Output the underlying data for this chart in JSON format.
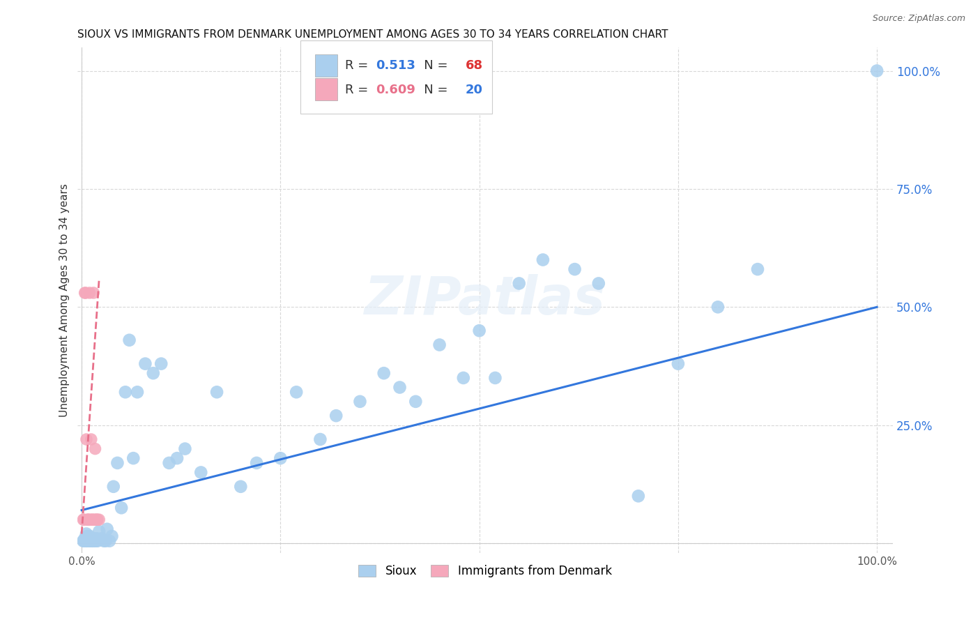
{
  "title": "SIOUX VS IMMIGRANTS FROM DENMARK UNEMPLOYMENT AMONG AGES 30 TO 34 YEARS CORRELATION CHART",
  "source": "Source: ZipAtlas.com",
  "ylabel": "Unemployment Among Ages 30 to 34 years",
  "xlim": [
    -0.005,
    1.02
  ],
  "ylim": [
    -0.02,
    1.05
  ],
  "watermark": "ZIPatlas",
  "legend_sioux_R": "0.513",
  "legend_sioux_N": "68",
  "legend_denmark_R": "0.609",
  "legend_denmark_N": "20",
  "sioux_color": "#aacfee",
  "denmark_color": "#f5a8bb",
  "sioux_line_color": "#3377dd",
  "denmark_line_color": "#e8708a",
  "background_color": "#ffffff",
  "grid_color": "#d8d8d8",
  "sioux_scatter_x": [
    0.002,
    0.003,
    0.004,
    0.004,
    0.005,
    0.005,
    0.006,
    0.006,
    0.007,
    0.007,
    0.008,
    0.009,
    0.01,
    0.01,
    0.011,
    0.012,
    0.013,
    0.014,
    0.015,
    0.016,
    0.018,
    0.019,
    0.02,
    0.022,
    0.025,
    0.028,
    0.03,
    0.032,
    0.035,
    0.038,
    0.04,
    0.045,
    0.05,
    0.055,
    0.06,
    0.065,
    0.07,
    0.08,
    0.09,
    0.1,
    0.11,
    0.12,
    0.13,
    0.15,
    0.17,
    0.2,
    0.22,
    0.25,
    0.27,
    0.3,
    0.32,
    0.35,
    0.38,
    0.4,
    0.42,
    0.45,
    0.48,
    0.5,
    0.52,
    0.55,
    0.58,
    0.62,
    0.65,
    0.7,
    0.75,
    0.8,
    0.85,
    1.0
  ],
  "sioux_scatter_y": [
    0.005,
    0.005,
    0.005,
    0.01,
    0.005,
    0.01,
    0.005,
    0.02,
    0.005,
    0.015,
    0.01,
    0.005,
    0.005,
    0.015,
    0.005,
    0.01,
    0.005,
    0.005,
    0.01,
    0.005,
    0.005,
    0.01,
    0.005,
    0.025,
    0.01,
    0.005,
    0.005,
    0.03,
    0.005,
    0.015,
    0.12,
    0.17,
    0.075,
    0.32,
    0.43,
    0.18,
    0.32,
    0.38,
    0.36,
    0.38,
    0.17,
    0.18,
    0.2,
    0.15,
    0.32,
    0.12,
    0.17,
    0.18,
    0.32,
    0.22,
    0.27,
    0.3,
    0.36,
    0.33,
    0.3,
    0.42,
    0.35,
    0.45,
    0.35,
    0.55,
    0.6,
    0.58,
    0.55,
    0.1,
    0.38,
    0.5,
    0.58,
    1.0
  ],
  "denmark_scatter_x": [
    0.002,
    0.003,
    0.004,
    0.005,
    0.006,
    0.007,
    0.008,
    0.009,
    0.01,
    0.011,
    0.012,
    0.013,
    0.014,
    0.015,
    0.016,
    0.017,
    0.018,
    0.019,
    0.02,
    0.022
  ],
  "denmark_scatter_y": [
    0.05,
    0.05,
    0.53,
    0.53,
    0.22,
    0.05,
    0.05,
    0.05,
    0.53,
    0.05,
    0.22,
    0.05,
    0.05,
    0.53,
    0.05,
    0.2,
    0.05,
    0.05,
    0.05,
    0.05
  ],
  "sioux_line_x0": 0.0,
  "sioux_line_y0": 0.07,
  "sioux_line_x1": 1.0,
  "sioux_line_y1": 0.5,
  "denmark_line_x0": 0.0,
  "denmark_line_y0": 0.02,
  "denmark_line_x1": 0.022,
  "denmark_line_y1": 0.56,
  "xtick_positions": [
    0.0,
    1.0
  ],
  "xtick_labels": [
    "0.0%",
    "100.0%"
  ],
  "ytick_right_positions": [
    1.0,
    0.75,
    0.5,
    0.25
  ],
  "ytick_right_labels": [
    "100.0%",
    "75.0%",
    "50.0%",
    "25.0%"
  ]
}
